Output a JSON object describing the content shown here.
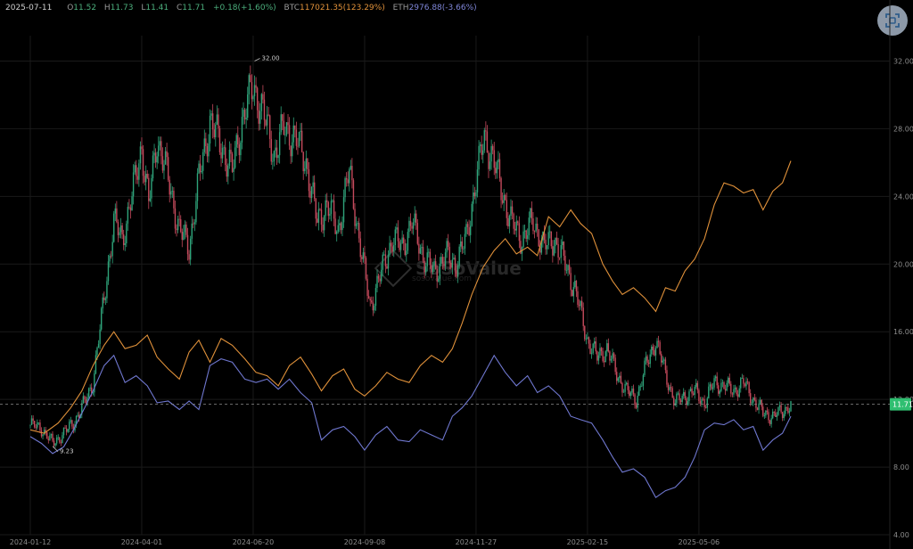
{
  "header": {
    "date": "2025-07-11",
    "open_key": "O",
    "open": "11.52",
    "high_key": "H",
    "high": "11.73",
    "low_key": "L",
    "low": "11.41",
    "close_key": "C",
    "close": "11.71",
    "change": "+0.18(+1.60%)",
    "btc_key": "BTC",
    "btc": "117021.35(123.29%)",
    "eth_key": "ETH",
    "eth": "2976.88(-3.66%)"
  },
  "toolbar": {
    "screenshot_icon": "screenshot-icon"
  },
  "watermark": {
    "brand": "SoSoValue",
    "site": "sosovalue.com"
  },
  "colors": {
    "background": "#000000",
    "grid": "#1a1a1a",
    "up": "#2fa37a",
    "down": "#c44a5c",
    "btc": "#e0913a",
    "eth": "#6f77cf",
    "last_price_badge": "#2fbf71"
  },
  "chart_data": {
    "type": "candlestick",
    "y_axis_position": "right",
    "ylim": [
      4,
      33.5
    ],
    "y_ticks": [
      "4.00",
      "8.00",
      "12.00",
      "16.00",
      "20.00",
      "24.00",
      "28.00",
      "32.00"
    ],
    "x_ticks": [
      "2024-01-12",
      "2024-04-01",
      "2024-06-20",
      "2024-09-08",
      "2024-11-27",
      "2025-02-15",
      "2025-05-06"
    ],
    "x_start": "2024-01-12",
    "x_end": "2025-07-11",
    "grid": true,
    "last_price": 11.71,
    "last_price_label": "11.71",
    "annotations": [
      {
        "date": "2024-06-21",
        "value": 32.0,
        "label": "32.00",
        "kind": "high"
      },
      {
        "date": "2024-01-28",
        "value": 9.23,
        "label": "9.23",
        "kind": "low"
      }
    ],
    "series": [
      {
        "kind": "price_close",
        "points": [
          [
            "2024-01-12",
            10.5
          ],
          [
            "2024-01-20",
            10.3
          ],
          [
            "2024-01-28",
            9.4
          ],
          [
            "2024-02-05",
            10.0
          ],
          [
            "2024-02-12",
            10.6
          ],
          [
            "2024-02-20",
            11.8
          ],
          [
            "2024-02-26",
            13.0
          ],
          [
            "2024-03-05",
            18.0
          ],
          [
            "2024-03-12",
            22.5
          ],
          [
            "2024-03-18",
            21.5
          ],
          [
            "2024-03-25",
            24.0
          ],
          [
            "2024-04-01",
            27.0
          ],
          [
            "2024-04-06",
            23.5
          ],
          [
            "2024-04-12",
            27.5
          ],
          [
            "2024-04-20",
            25.0
          ],
          [
            "2024-04-28",
            22.0
          ],
          [
            "2024-05-05",
            21.0
          ],
          [
            "2024-05-12",
            25.0
          ],
          [
            "2024-05-20",
            28.5
          ],
          [
            "2024-05-28",
            27.0
          ],
          [
            "2024-06-05",
            25.5
          ],
          [
            "2024-06-12",
            28.5
          ],
          [
            "2024-06-20",
            30.5
          ],
          [
            "2024-06-27",
            29.0
          ],
          [
            "2024-07-05",
            26.5
          ],
          [
            "2024-07-12",
            28.0
          ],
          [
            "2024-07-20",
            27.5
          ],
          [
            "2024-07-28",
            26.0
          ],
          [
            "2024-08-05",
            22.5
          ],
          [
            "2024-08-12",
            23.5
          ],
          [
            "2024-08-20",
            22.0
          ],
          [
            "2024-08-28",
            25.5
          ],
          [
            "2024-09-05",
            21.0
          ],
          [
            "2024-09-12",
            17.5
          ],
          [
            "2024-09-20",
            19.5
          ],
          [
            "2024-09-28",
            21.5
          ],
          [
            "2024-10-05",
            21.0
          ],
          [
            "2024-10-12",
            22.5
          ],
          [
            "2024-10-20",
            20.5
          ],
          [
            "2024-10-28",
            19.5
          ],
          [
            "2024-11-05",
            20.5
          ],
          [
            "2024-11-12",
            20.0
          ],
          [
            "2024-11-20",
            21.5
          ],
          [
            "2024-11-27",
            25.0
          ],
          [
            "2024-12-03",
            27.5
          ],
          [
            "2024-12-08",
            26.5
          ],
          [
            "2024-12-15",
            24.5
          ],
          [
            "2024-12-22",
            22.5
          ],
          [
            "2024-12-30",
            21.5
          ],
          [
            "2025-01-07",
            22.5
          ],
          [
            "2025-01-15",
            21.0
          ],
          [
            "2025-01-22",
            21.5
          ],
          [
            "2025-01-30",
            20.0
          ],
          [
            "2025-02-06",
            18.5
          ],
          [
            "2025-02-15",
            15.5
          ],
          [
            "2025-02-22",
            14.5
          ],
          [
            "2025-03-01",
            15.0
          ],
          [
            "2025-03-08",
            13.5
          ],
          [
            "2025-03-15",
            12.5
          ],
          [
            "2025-03-22",
            12.0
          ],
          [
            "2025-03-29",
            14.0
          ],
          [
            "2025-04-05",
            15.5
          ],
          [
            "2025-04-12",
            13.5
          ],
          [
            "2025-04-19",
            11.8
          ],
          [
            "2025-04-26",
            12.2
          ],
          [
            "2025-05-03",
            12.5
          ],
          [
            "2025-05-10",
            11.8
          ],
          [
            "2025-05-17",
            13.0
          ],
          [
            "2025-05-24",
            12.8
          ],
          [
            "2025-05-31",
            12.5
          ],
          [
            "2025-06-07",
            13.0
          ],
          [
            "2025-06-14",
            12.0
          ],
          [
            "2025-06-21",
            11.2
          ],
          [
            "2025-06-28",
            11.0
          ],
          [
            "2025-07-05",
            11.3
          ],
          [
            "2025-07-11",
            11.71
          ]
        ]
      },
      {
        "name": "BTC",
        "kind": "overlay",
        "color": "#e0913a",
        "points": [
          [
            "2024-01-12",
            10.2
          ],
          [
            "2024-01-22",
            10.0
          ],
          [
            "2024-02-01",
            10.6
          ],
          [
            "2024-02-10",
            11.5
          ],
          [
            "2024-02-18",
            12.5
          ],
          [
            "2024-02-26",
            14.0
          ],
          [
            "2024-03-05",
            15.2
          ],
          [
            "2024-03-12",
            16.0
          ],
          [
            "2024-03-20",
            15.0
          ],
          [
            "2024-03-28",
            15.2
          ],
          [
            "2024-04-05",
            15.8
          ],
          [
            "2024-04-12",
            14.5
          ],
          [
            "2024-04-20",
            13.8
          ],
          [
            "2024-04-28",
            13.2
          ],
          [
            "2024-05-05",
            14.8
          ],
          [
            "2024-05-12",
            15.5
          ],
          [
            "2024-05-20",
            14.2
          ],
          [
            "2024-05-28",
            15.6
          ],
          [
            "2024-06-05",
            15.2
          ],
          [
            "2024-06-14",
            14.4
          ],
          [
            "2024-06-22",
            13.6
          ],
          [
            "2024-06-30",
            13.4
          ],
          [
            "2024-07-08",
            12.8
          ],
          [
            "2024-07-16",
            14.0
          ],
          [
            "2024-07-24",
            14.5
          ],
          [
            "2024-08-01",
            13.5
          ],
          [
            "2024-08-08",
            12.5
          ],
          [
            "2024-08-16",
            13.4
          ],
          [
            "2024-08-24",
            13.8
          ],
          [
            "2024-09-01",
            12.6
          ],
          [
            "2024-09-08",
            12.2
          ],
          [
            "2024-09-16",
            12.8
          ],
          [
            "2024-09-24",
            13.6
          ],
          [
            "2024-10-02",
            13.2
          ],
          [
            "2024-10-10",
            13.0
          ],
          [
            "2024-10-18",
            14.0
          ],
          [
            "2024-10-26",
            14.6
          ],
          [
            "2024-11-03",
            14.2
          ],
          [
            "2024-11-10",
            15.0
          ],
          [
            "2024-11-17",
            16.5
          ],
          [
            "2024-11-24",
            18.2
          ],
          [
            "2024-12-02",
            19.8
          ],
          [
            "2024-12-10",
            20.8
          ],
          [
            "2024-12-18",
            21.5
          ],
          [
            "2024-12-26",
            20.6
          ],
          [
            "2025-01-03",
            21.0
          ],
          [
            "2025-01-10",
            20.5
          ],
          [
            "2025-01-18",
            22.8
          ],
          [
            "2025-01-26",
            22.2
          ],
          [
            "2025-02-03",
            23.2
          ],
          [
            "2025-02-10",
            22.4
          ],
          [
            "2025-02-18",
            21.8
          ],
          [
            "2025-02-26",
            20.0
          ],
          [
            "2025-03-05",
            19.0
          ],
          [
            "2025-03-12",
            18.2
          ],
          [
            "2025-03-20",
            18.6
          ],
          [
            "2025-03-28",
            18.0
          ],
          [
            "2025-04-05",
            17.2
          ],
          [
            "2025-04-12",
            18.6
          ],
          [
            "2025-04-19",
            18.4
          ],
          [
            "2025-04-26",
            19.6
          ],
          [
            "2025-05-03",
            20.3
          ],
          [
            "2025-05-10",
            21.5
          ],
          [
            "2025-05-17",
            23.5
          ],
          [
            "2025-05-24",
            24.8
          ],
          [
            "2025-05-31",
            24.6
          ],
          [
            "2025-06-07",
            24.2
          ],
          [
            "2025-06-14",
            24.4
          ],
          [
            "2025-06-21",
            23.2
          ],
          [
            "2025-06-28",
            24.3
          ],
          [
            "2025-07-05",
            24.8
          ],
          [
            "2025-07-11",
            26.1
          ]
        ]
      },
      {
        "name": "ETH",
        "kind": "overlay",
        "color": "#6f77cf",
        "points": [
          [
            "2024-01-12",
            9.8
          ],
          [
            "2024-01-20",
            9.4
          ],
          [
            "2024-01-28",
            8.8
          ],
          [
            "2024-02-05",
            9.2
          ],
          [
            "2024-02-12",
            10.2
          ],
          [
            "2024-02-20",
            11.5
          ],
          [
            "2024-02-26",
            12.5
          ],
          [
            "2024-03-05",
            14.0
          ],
          [
            "2024-03-12",
            14.6
          ],
          [
            "2024-03-20",
            13.0
          ],
          [
            "2024-03-28",
            13.4
          ],
          [
            "2024-04-05",
            12.8
          ],
          [
            "2024-04-12",
            11.8
          ],
          [
            "2024-04-20",
            11.9
          ],
          [
            "2024-04-28",
            11.4
          ],
          [
            "2024-05-05",
            11.9
          ],
          [
            "2024-05-12",
            11.4
          ],
          [
            "2024-05-20",
            14.0
          ],
          [
            "2024-05-28",
            14.4
          ],
          [
            "2024-06-05",
            14.2
          ],
          [
            "2024-06-14",
            13.2
          ],
          [
            "2024-06-22",
            13.0
          ],
          [
            "2024-06-30",
            13.2
          ],
          [
            "2024-07-08",
            12.6
          ],
          [
            "2024-07-16",
            13.2
          ],
          [
            "2024-07-24",
            12.4
          ],
          [
            "2024-08-01",
            11.8
          ],
          [
            "2024-08-08",
            9.6
          ],
          [
            "2024-08-16",
            10.2
          ],
          [
            "2024-08-24",
            10.4
          ],
          [
            "2024-09-01",
            9.8
          ],
          [
            "2024-09-08",
            9.0
          ],
          [
            "2024-09-16",
            9.9
          ],
          [
            "2024-09-24",
            10.4
          ],
          [
            "2024-10-02",
            9.6
          ],
          [
            "2024-10-10",
            9.5
          ],
          [
            "2024-10-18",
            10.2
          ],
          [
            "2024-10-26",
            9.9
          ],
          [
            "2024-11-03",
            9.6
          ],
          [
            "2024-11-10",
            11.0
          ],
          [
            "2024-11-17",
            11.5
          ],
          [
            "2024-11-24",
            12.2
          ],
          [
            "2024-12-02",
            13.4
          ],
          [
            "2024-12-10",
            14.6
          ],
          [
            "2024-12-18",
            13.6
          ],
          [
            "2024-12-26",
            12.8
          ],
          [
            "2025-01-03",
            13.4
          ],
          [
            "2025-01-10",
            12.4
          ],
          [
            "2025-01-18",
            12.8
          ],
          [
            "2025-01-26",
            12.2
          ],
          [
            "2025-02-03",
            11.0
          ],
          [
            "2025-02-10",
            10.8
          ],
          [
            "2025-02-18",
            10.6
          ],
          [
            "2025-02-26",
            9.6
          ],
          [
            "2025-03-05",
            8.6
          ],
          [
            "2025-03-12",
            7.7
          ],
          [
            "2025-03-20",
            7.9
          ],
          [
            "2025-03-28",
            7.4
          ],
          [
            "2025-04-05",
            6.2
          ],
          [
            "2025-04-12",
            6.6
          ],
          [
            "2025-04-19",
            6.8
          ],
          [
            "2025-04-26",
            7.4
          ],
          [
            "2025-05-03",
            8.6
          ],
          [
            "2025-05-10",
            10.2
          ],
          [
            "2025-05-17",
            10.6
          ],
          [
            "2025-05-24",
            10.5
          ],
          [
            "2025-05-31",
            10.8
          ],
          [
            "2025-06-07",
            10.2
          ],
          [
            "2025-06-14",
            10.4
          ],
          [
            "2025-06-21",
            9.0
          ],
          [
            "2025-06-28",
            9.6
          ],
          [
            "2025-07-05",
            10.0
          ],
          [
            "2025-07-11",
            11.0
          ]
        ]
      }
    ]
  }
}
